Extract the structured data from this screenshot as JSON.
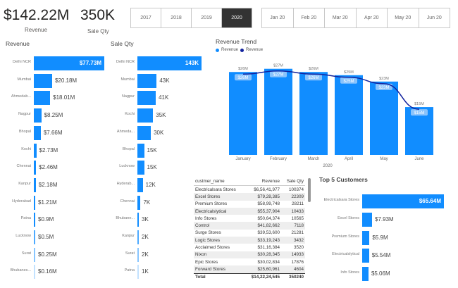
{
  "kpis": {
    "revenue": "$142.22M",
    "revenue_label": "Revenue",
    "qty": "350K",
    "qty_label": "Sale Qty"
  },
  "years": [
    {
      "label": "2017",
      "selected": false
    },
    {
      "label": "2018",
      "selected": false
    },
    {
      "label": "2019",
      "selected": false
    },
    {
      "label": "2020",
      "selected": true
    }
  ],
  "months": [
    "Jan 20",
    "Feb 20",
    "Mar 20",
    "Apr 20",
    "May 20",
    "Jun 20"
  ],
  "revenue_by_city": {
    "title": "Revenue",
    "max": 77.73,
    "items": [
      {
        "label": "Delhi NCR",
        "value": 77.73,
        "text": "$77.73M"
      },
      {
        "label": "Mumbai",
        "value": 20.18,
        "text": "$20.18M"
      },
      {
        "label": "Ahmedab...",
        "value": 18.01,
        "text": "$18.01M"
      },
      {
        "label": "Nagpur",
        "value": 8.25,
        "text": "$8.25M"
      },
      {
        "label": "Bhopal",
        "value": 7.66,
        "text": "$7.66M"
      },
      {
        "label": "Kochi",
        "value": 2.73,
        "text": "$2.73M"
      },
      {
        "label": "Chennai",
        "value": 2.46,
        "text": "$2.46M"
      },
      {
        "label": "Kanpur",
        "value": 2.18,
        "text": "$2.18M"
      },
      {
        "label": "Hyderabad",
        "value": 1.21,
        "text": "$1.21M"
      },
      {
        "label": "Patna",
        "value": 0.9,
        "text": "$0.9M"
      },
      {
        "label": "Lucknow",
        "value": 0.5,
        "text": "$0.5M"
      },
      {
        "label": "Surat",
        "value": 0.25,
        "text": "$0.25M"
      },
      {
        "label": "Bhubanes...",
        "value": 0.16,
        "text": "$0.16M"
      }
    ]
  },
  "qty_by_city": {
    "title": "Sale Qty",
    "max": 143,
    "items": [
      {
        "label": "Delhi NCR",
        "value": 143,
        "text": "143K"
      },
      {
        "label": "Mumbai",
        "value": 43,
        "text": "43K"
      },
      {
        "label": "Nagpur",
        "value": 41,
        "text": "41K"
      },
      {
        "label": "Kochi",
        "value": 35,
        "text": "35K"
      },
      {
        "label": "Ahmeda...",
        "value": 30,
        "text": "30K"
      },
      {
        "label": "Bhopal",
        "value": 15,
        "text": "15K"
      },
      {
        "label": "Lucknow",
        "value": 15,
        "text": "15K"
      },
      {
        "label": "Hyderab...",
        "value": 12,
        "text": "12K"
      },
      {
        "label": "Chennai",
        "value": 7,
        "text": "7K"
      },
      {
        "label": "Bhubane...",
        "value": 3,
        "text": "3K"
      },
      {
        "label": "Kanpur",
        "value": 2,
        "text": "2K"
      },
      {
        "label": "Surat",
        "value": 2,
        "text": "2K"
      },
      {
        "label": "Patna",
        "value": 1,
        "text": "1K"
      }
    ]
  },
  "chart_data": {
    "type": "bar",
    "title": "Revenue Trend",
    "categories": [
      "January",
      "February",
      "March",
      "April",
      "May",
      "June"
    ],
    "xlabel": "2020",
    "series": [
      {
        "name": "Revenue",
        "kind": "bar",
        "values": [
          26,
          27,
          26,
          25,
          23,
          15
        ],
        "labels": [
          "$26M",
          "$27M",
          "$26M",
          "$25M",
          "$23M",
          "$15M"
        ],
        "color": "#118dff"
      },
      {
        "name": "Revenue",
        "kind": "line",
        "values": [
          26,
          27,
          26,
          25,
          23,
          15
        ],
        "labels": [
          "$26M",
          "$27M",
          "$26M",
          "$25M",
          "$23M",
          "$15M"
        ],
        "color": "#12239e"
      }
    ],
    "ylim": [
      0,
      30
    ]
  },
  "table": {
    "headers": [
      "custmer_name",
      "Revenue",
      "Sale Qty"
    ],
    "rows": [
      [
        "Electricalsara Stores",
        "$6,56,41,977",
        "100374"
      ],
      [
        "Excel Stores",
        "$79,28,385",
        "22309"
      ],
      [
        "Premium Stores",
        "$58,99,748",
        "28211"
      ],
      [
        "Electricalslytical",
        "$55,37,904",
        "10433"
      ],
      [
        "Info Stores",
        "$50,64,374",
        "10565"
      ],
      [
        "Control",
        "$41,82,662",
        "7118"
      ],
      [
        "Surge Stores",
        "$39,53,600",
        "21281"
      ],
      [
        "Logic Stores",
        "$33,19,243",
        "3432"
      ],
      [
        "Acclaimed Stores",
        "$31,16,384",
        "3520"
      ],
      [
        "Nixon",
        "$30,28,345",
        "14933"
      ],
      [
        "Epic Stores",
        "$30,02,834",
        "17876"
      ],
      [
        "Forward Stores",
        "$25,60,961",
        "4604"
      ]
    ],
    "total": [
      "Total",
      "$14,22,24,545",
      "350240"
    ]
  },
  "top5": {
    "title": "Top 5 Customers",
    "max": 65.64,
    "items": [
      {
        "label": "Electricalsara Stores",
        "value": 65.64,
        "text": "$65.64M"
      },
      {
        "label": "Excel Stores",
        "value": 7.93,
        "text": "$7.93M"
      },
      {
        "label": "Premium Stores",
        "value": 5.9,
        "text": "$5.9M"
      },
      {
        "label": "Electricalslytical",
        "value": 5.54,
        "text": "$5.54M"
      },
      {
        "label": "Info Stores",
        "value": 5.06,
        "text": "$5.06M"
      }
    ]
  }
}
